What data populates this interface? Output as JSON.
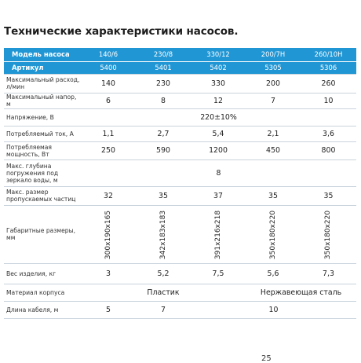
{
  "title": "Технические характеристики насосов.",
  "header": {
    "model_label": "Модель насоса",
    "models": [
      "140/6",
      "230/8",
      "330/12",
      "200/7H",
      "260/10H"
    ],
    "article_label": "Артикул",
    "articles": [
      "5400",
      "5401",
      "5402",
      "5305",
      "5306"
    ]
  },
  "rows": {
    "flow": {
      "label": "Максимальный расход, л/мин",
      "values": [
        "140",
        "230",
        "330",
        "200",
        "260"
      ]
    },
    "head": {
      "label": "Максимальный напор, м",
      "values": [
        "6",
        "8",
        "12",
        "7",
        "10"
      ]
    },
    "voltage": {
      "label": "Напряжение, В",
      "value": "220±10%"
    },
    "current": {
      "label": "Потребляемый ток, А",
      "values": [
        "1,1",
        "2,7",
        "5,4",
        "2,1",
        "3,6"
      ]
    },
    "power": {
      "label": "Потребляемая мощность, Вт",
      "values": [
        "250",
        "590",
        "1200",
        "450",
        "800"
      ]
    },
    "depth": {
      "label": "Макс. глубина погружения под зеркало воды, м",
      "value": "8"
    },
    "particle": {
      "label": "Макс. размер пропускаемых частиц",
      "values": [
        "32",
        "35",
        "37",
        "35",
        "35"
      ]
    },
    "dims": {
      "label": "Габаритные размеры, мм",
      "values": [
        "300x190x165",
        "342x183x183",
        "391x216x218",
        "350x180x220",
        "350x180x220"
      ]
    },
    "weight": {
      "label": "Вес изделия, кг",
      "values": [
        "3",
        "5,2",
        "7,5",
        "5,6",
        "7,3"
      ]
    },
    "material": {
      "label": "Материал корпуса",
      "values": [
        "Пластик",
        "Нержавеющая сталь"
      ]
    },
    "cable": {
      "label": "Длина кабеля, м",
      "values": [
        "5",
        "7",
        "10"
      ]
    }
  },
  "page_number": "25"
}
